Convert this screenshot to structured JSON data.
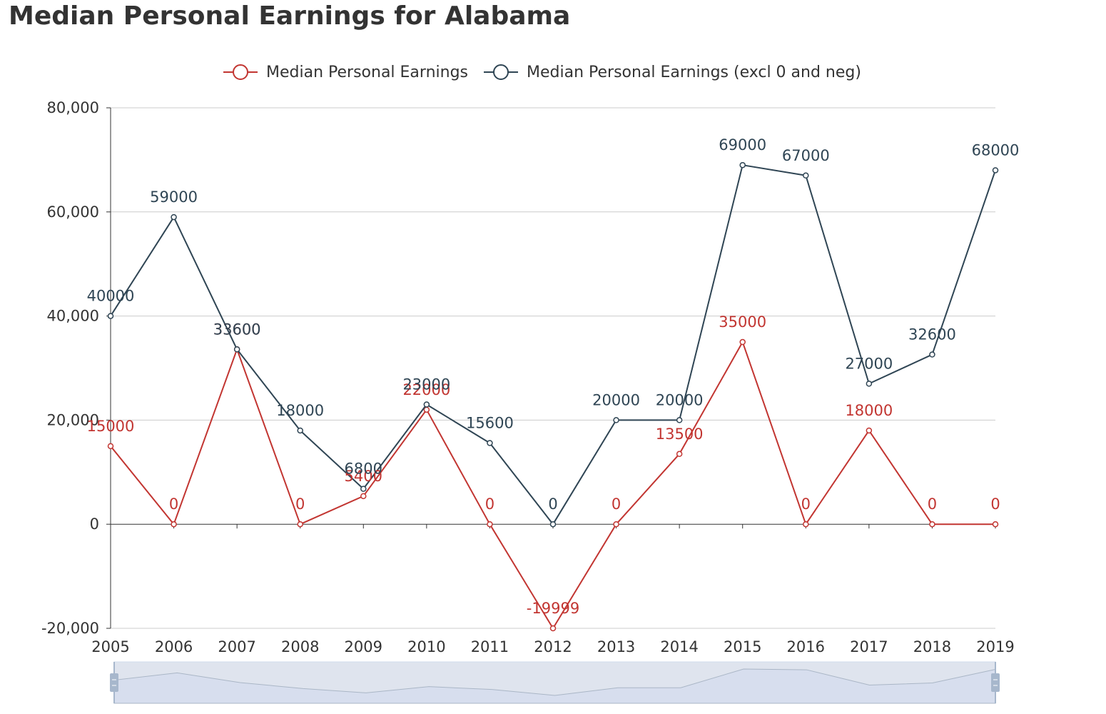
{
  "page": {
    "title": "Median Personal Earnings for Alabama"
  },
  "colors": {
    "series_0": "#c23531",
    "series_1": "#2f4554",
    "axis": "#333333",
    "grid": "#cccccc",
    "axis_text": "#333333",
    "slider_fill": "#dfe4ee",
    "slider_handle": "#a7b7cc",
    "slider_shadow": "#d2dbee"
  },
  "chart_data": {
    "type": "line",
    "title": "Median Personal Earnings for Alabama",
    "x": [
      "2005",
      "2006",
      "2007",
      "2008",
      "2009",
      "2010",
      "2011",
      "2012",
      "2013",
      "2014",
      "2015",
      "2016",
      "2017",
      "2018",
      "2019"
    ],
    "series": [
      {
        "name": "Median Personal Earnings",
        "values": [
          15000,
          0,
          33600,
          0,
          5400,
          22000,
          0,
          -19999,
          0,
          13500,
          35000,
          0,
          18000,
          0,
          0
        ],
        "color_key": "series_0",
        "labels_visible": true
      },
      {
        "name": "Median Personal Earnings (excl 0 and neg)",
        "values": [
          40000,
          59000,
          33600,
          18000,
          6800,
          23000,
          15600,
          0,
          20000,
          20000,
          69000,
          67000,
          27000,
          32600,
          68000
        ],
        "color_key": "series_1",
        "labels_visible": true
      }
    ],
    "ylim": [
      -20000,
      80000
    ],
    "yticks": [
      -20000,
      0,
      20000,
      40000,
      60000,
      80000
    ],
    "ytick_labels": [
      "-20,000",
      "0",
      "20,000",
      "40,000",
      "60,000",
      "80,000"
    ],
    "xlabel": "",
    "ylabel": "",
    "grid": true,
    "legend_position": "top-center",
    "data_zoom_slider": true
  }
}
